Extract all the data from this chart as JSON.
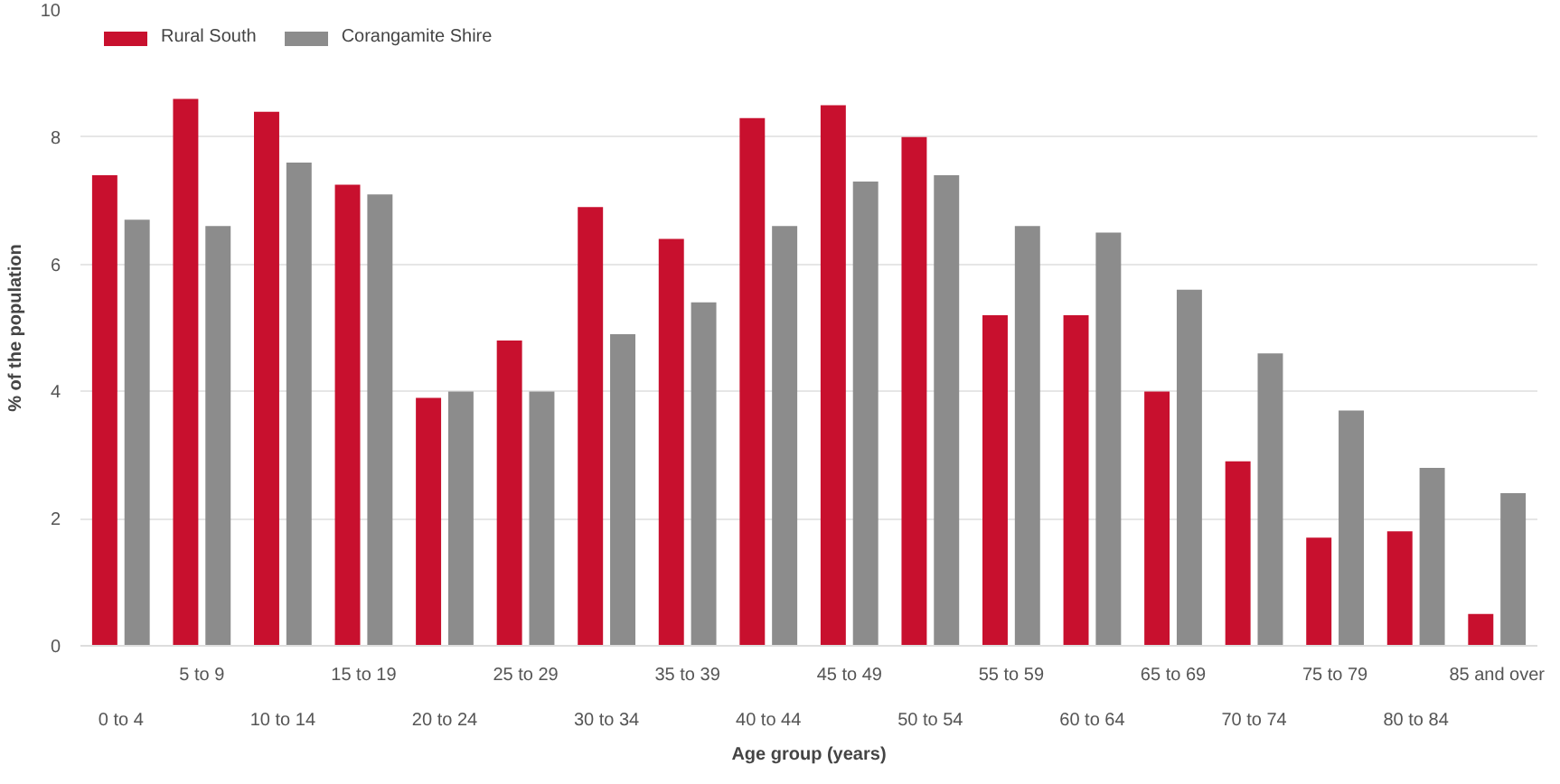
{
  "chart_data": {
    "type": "bar",
    "xlabel": "Age group (years)",
    "ylabel": "% of the population",
    "categories": [
      "0 to 4",
      "5 to 9",
      "10 to 14",
      "15 to 19",
      "20 to 24",
      "25 to 29",
      "30 to 34",
      "35 to 39",
      "40 to 44",
      "45 to 49",
      "50 to 54",
      "55 to 59",
      "60 to 64",
      "65 to 69",
      "70 to 74",
      "75 to 79",
      "80 to 84",
      "85 and over"
    ],
    "series": [
      {
        "name": "Rural South",
        "color": "#c8102e",
        "values": [
          7.4,
          8.6,
          8.4,
          7.25,
          3.9,
          4.8,
          6.9,
          6.4,
          8.3,
          8.5,
          8.0,
          5.2,
          5.2,
          4.0,
          2.9,
          1.7,
          1.8,
          0.5
        ]
      },
      {
        "name": "Corangamite Shire",
        "color": "#8c8c8c",
        "values": [
          6.7,
          6.6,
          7.6,
          7.1,
          4.0,
          4.0,
          4.9,
          5.4,
          6.6,
          7.3,
          7.4,
          6.6,
          6.5,
          5.6,
          4.6,
          3.7,
          2.8,
          2.4
        ]
      }
    ],
    "ylim": [
      0,
      10
    ],
    "yticks": [
      0,
      2,
      4,
      6,
      8,
      10
    ],
    "grid": "y",
    "legend": "top left"
  }
}
